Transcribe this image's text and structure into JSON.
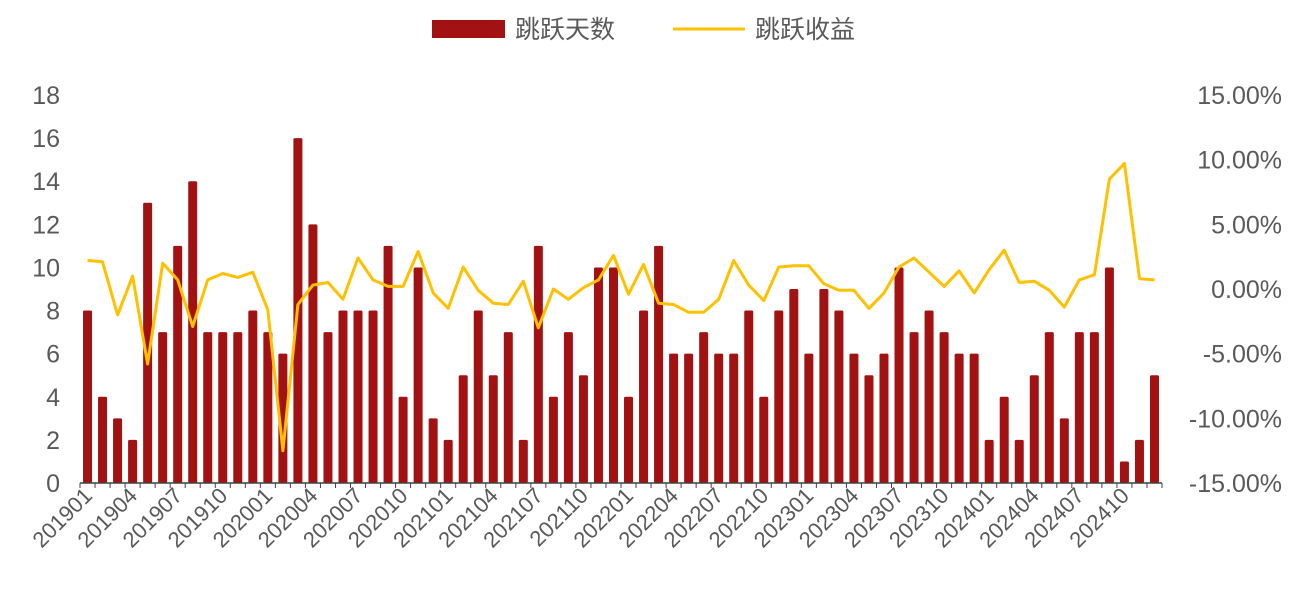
{
  "chart_data": {
    "type": "bar+line",
    "title": "",
    "legend": {
      "placement": "top",
      "entries": [
        "跳跃天数",
        "跳跃收益"
      ]
    },
    "colors": {
      "bar": "#a31212",
      "line": "#ffc000",
      "text": "#595959",
      "axis": "#404040"
    },
    "grid": false,
    "x_tick_labels": [
      "201901",
      "201904",
      "201907",
      "201910",
      "202001",
      "202004",
      "202007",
      "202010",
      "202101",
      "202104",
      "202107",
      "202110",
      "202201",
      "202204",
      "202207",
      "202210",
      "202301",
      "202304",
      "202307",
      "202310",
      "202401",
      "202404",
      "202407",
      "202410"
    ],
    "left_axis": {
      "ylim": [
        0,
        18
      ],
      "ticks": [
        "0",
        "2",
        "4",
        "6",
        "8",
        "10",
        "12",
        "14",
        "16",
        "18"
      ]
    },
    "right_axis": {
      "ylim": [
        -15,
        15
      ],
      "ticks": [
        "-15.00%",
        "-10.00%",
        "-5.00%",
        "0.00%",
        "5.00%",
        "10.00%",
        "15.00%"
      ]
    },
    "x": [
      "201901",
      "201902",
      "201903",
      "201904",
      "201905",
      "201906",
      "201907",
      "201908",
      "201909",
      "201910",
      "201911",
      "201912",
      "202001",
      "202002",
      "202003",
      "202004",
      "202005",
      "202006",
      "202007",
      "202008",
      "202009",
      "202010",
      "202011",
      "202012",
      "202101",
      "202102",
      "202103",
      "202104",
      "202105",
      "202106",
      "202107",
      "202108",
      "202109",
      "202110",
      "202111",
      "202112",
      "202201",
      "202202",
      "202203",
      "202204",
      "202205",
      "202206",
      "202207",
      "202208",
      "202209",
      "202210",
      "202211",
      "202212",
      "202301",
      "202302",
      "202303",
      "202304",
      "202305",
      "202306",
      "202307",
      "202308",
      "202309",
      "202310",
      "202311",
      "202312",
      "202401",
      "202402",
      "202403",
      "202404",
      "202405",
      "202406",
      "202407",
      "202408",
      "202409",
      "202410",
      "202411",
      "202412"
    ],
    "series": [
      {
        "name": "跳跃天数",
        "type": "bar",
        "axis": "left",
        "values": [
          8,
          4,
          3,
          2,
          13,
          7,
          11,
          14,
          7,
          7,
          7,
          8,
          7,
          6,
          16,
          12,
          7,
          8,
          8,
          8,
          11,
          4,
          10,
          3,
          2,
          5,
          8,
          5,
          7,
          2,
          11,
          4,
          7,
          5,
          10,
          10,
          4,
          8,
          11,
          6,
          6,
          7,
          6,
          6,
          8,
          4,
          8,
          9,
          6,
          9,
          8,
          6,
          5,
          6,
          10,
          7,
          8,
          7,
          6,
          6,
          2,
          4,
          2,
          5,
          7,
          3,
          7,
          7,
          10,
          1,
          2,
          5
        ]
      },
      {
        "name": "跳跃收益",
        "type": "line",
        "axis": "right",
        "unit": "%",
        "values": [
          2.2,
          2.1,
          -2.0,
          1.0,
          -5.8,
          2.0,
          0.7,
          -2.9,
          0.7,
          1.2,
          0.9,
          1.3,
          -1.6,
          -12.5,
          -1.2,
          0.3,
          0.5,
          -0.8,
          2.4,
          0.7,
          0.2,
          0.2,
          2.9,
          -0.3,
          -1.5,
          1.7,
          -0.1,
          -1.1,
          -1.2,
          0.6,
          -3.0,
          0.0,
          -0.8,
          0.1,
          0.7,
          2.6,
          -0.4,
          1.9,
          -1.1,
          -1.2,
          -1.8,
          -1.8,
          -0.8,
          2.2,
          0.3,
          -0.9,
          1.7,
          1.8,
          1.8,
          0.4,
          -0.1,
          -0.1,
          -1.5,
          -0.3,
          1.7,
          2.4,
          1.3,
          0.2,
          1.4,
          -0.3,
          1.5,
          3.0,
          0.5,
          0.6,
          -0.1,
          -1.4,
          0.7,
          1.1,
          8.5,
          9.7,
          0.8,
          0.7
        ]
      }
    ]
  }
}
